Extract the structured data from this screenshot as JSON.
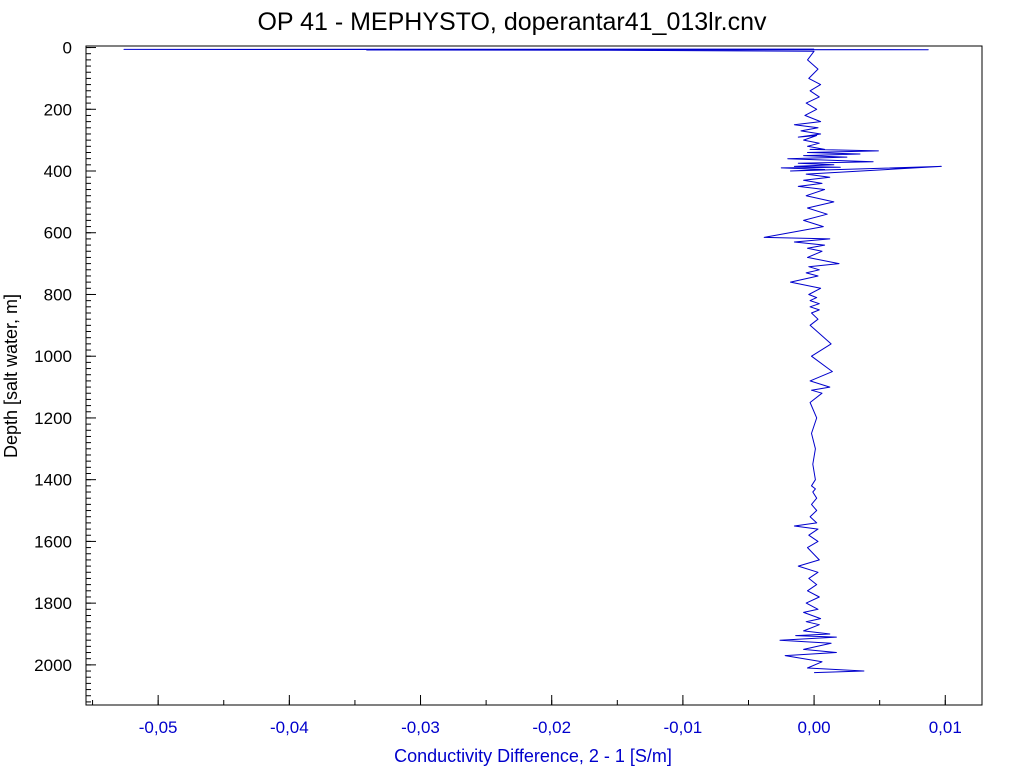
{
  "chart_data": {
    "type": "line",
    "title": "OP 41 - MEPHYSTO, doperantar41_013lr.cnv",
    "xlabel": "Conductivity Difference, 2 - 1 [S/m]",
    "ylabel": "Depth [salt water, m]",
    "xlim": [
      -0.0555,
      0.0128
    ],
    "ylim": [
      2130,
      -5
    ],
    "y_inverted": true,
    "x_ticks": [
      -0.05,
      -0.04,
      -0.03,
      -0.02,
      -0.01,
      0.0,
      0.01
    ],
    "x_tick_labels": [
      "-0,05",
      "-0,04",
      "-0,03",
      "-0,02",
      "-0,01",
      "0,00",
      "0,01"
    ],
    "y_ticks": [
      0,
      200,
      400,
      600,
      800,
      1000,
      1200,
      1400,
      1600,
      1800,
      2000
    ],
    "y_tick_labels": [
      "0",
      "200",
      "400",
      "600",
      "800",
      "1000",
      "1200",
      "1400",
      "1600",
      "1800",
      "2000"
    ],
    "y_minor_step": 20,
    "x_minor_step": 0.005,
    "grid": false,
    "colors": {
      "series": "#0000cc",
      "axis": "#000000",
      "x_axis_text": "#0000cc"
    },
    "series": [
      {
        "x": [
          0.0,
          -0.0526,
          0.0087,
          -0.0341,
          -0.0156,
          0.0,
          -0.0005,
          0.0003,
          -0.0004,
          0.0005,
          -0.0003,
          0.0004,
          -0.0006,
          0.0002,
          -0.0007,
          0.0005,
          -0.0015,
          0.0003,
          -0.001,
          0.0005,
          -0.0012,
          0.0002,
          -0.0008,
          0.0004,
          -0.0005,
          0.0008,
          -0.0003,
          0.0049,
          -0.0005,
          0.0035,
          -0.0008,
          0.0025,
          -0.002,
          0.0045,
          -0.0012,
          0.0015,
          -0.0015,
          0.002,
          -0.0025,
          0.0008,
          -0.0018,
          0.0097,
          -0.0006,
          0.0012,
          -0.0008,
          0.0006,
          -0.0012,
          0.0008,
          -0.0006,
          0.0015,
          -0.0005,
          0.001,
          -0.0008,
          0.0007,
          -0.0038,
          0.0012,
          -0.0015,
          0.0008,
          -0.0005,
          0.0006,
          -0.0005,
          0.0019,
          -0.0004,
          0.0004,
          -0.0006,
          0.0003,
          -0.0018,
          0.0005,
          -0.0004,
          0.0002,
          -0.0003,
          0.0004,
          -0.0003,
          0.0004,
          -0.0002,
          0.0003,
          -0.0003,
          0.0013,
          -0.0002,
          0.0014,
          -0.0003,
          0.0012,
          -0.0002,
          0.0006,
          -0.0003,
          0.0002,
          -0.0002,
          0.0001,
          -0.0001,
          0.0001,
          -0.0002,
          0.0001,
          -0.0001,
          0.0002,
          -0.0002,
          0.0002,
          -0.0003,
          0.0002,
          -0.0015,
          0.0003,
          -0.0004,
          0.0003,
          -0.0005,
          0.0004,
          -0.0012,
          0.0003,
          -0.0004,
          0.0002,
          -0.0005,
          0.0004,
          -0.0006,
          0.0003,
          -0.0008,
          0.0005,
          -0.0006,
          0.0004,
          -0.0008,
          0.0012,
          -0.0014,
          0.0017,
          -0.0026,
          0.0013,
          -0.0008,
          0.0017,
          -0.0022,
          0.0006,
          -0.0005,
          0.0038,
          0.0
        ],
        "y": [
          5,
          6,
          7,
          8,
          9,
          12,
          40,
          70,
          100,
          120,
          140,
          160,
          180,
          200,
          220,
          240,
          250,
          260,
          270,
          280,
          290,
          285,
          300,
          310,
          320,
          330,
          330,
          335,
          340,
          345,
          350,
          355,
          360,
          370,
          375,
          380,
          385,
          388,
          390,
          395,
          400,
          385,
          410,
          420,
          430,
          440,
          450,
          460,
          480,
          500,
          520,
          540,
          560,
          580,
          615,
          620,
          630,
          640,
          650,
          660,
          680,
          700,
          710,
          720,
          730,
          740,
          760,
          780,
          800,
          810,
          820,
          830,
          840,
          850,
          860,
          880,
          900,
          960,
          1000,
          1050,
          1080,
          1100,
          1110,
          1120,
          1150,
          1200,
          1250,
          1300,
          1350,
          1400,
          1420,
          1430,
          1440,
          1460,
          1480,
          1500,
          1520,
          1540,
          1550,
          1560,
          1580,
          1600,
          1620,
          1660,
          1680,
          1700,
          1720,
          1740,
          1760,
          1780,
          1800,
          1820,
          1830,
          1850,
          1860,
          1870,
          1890,
          1900,
          1905,
          1910,
          1920,
          1930,
          1950,
          1960,
          1970,
          1990,
          2010,
          2020,
          2025
        ]
      }
    ]
  }
}
